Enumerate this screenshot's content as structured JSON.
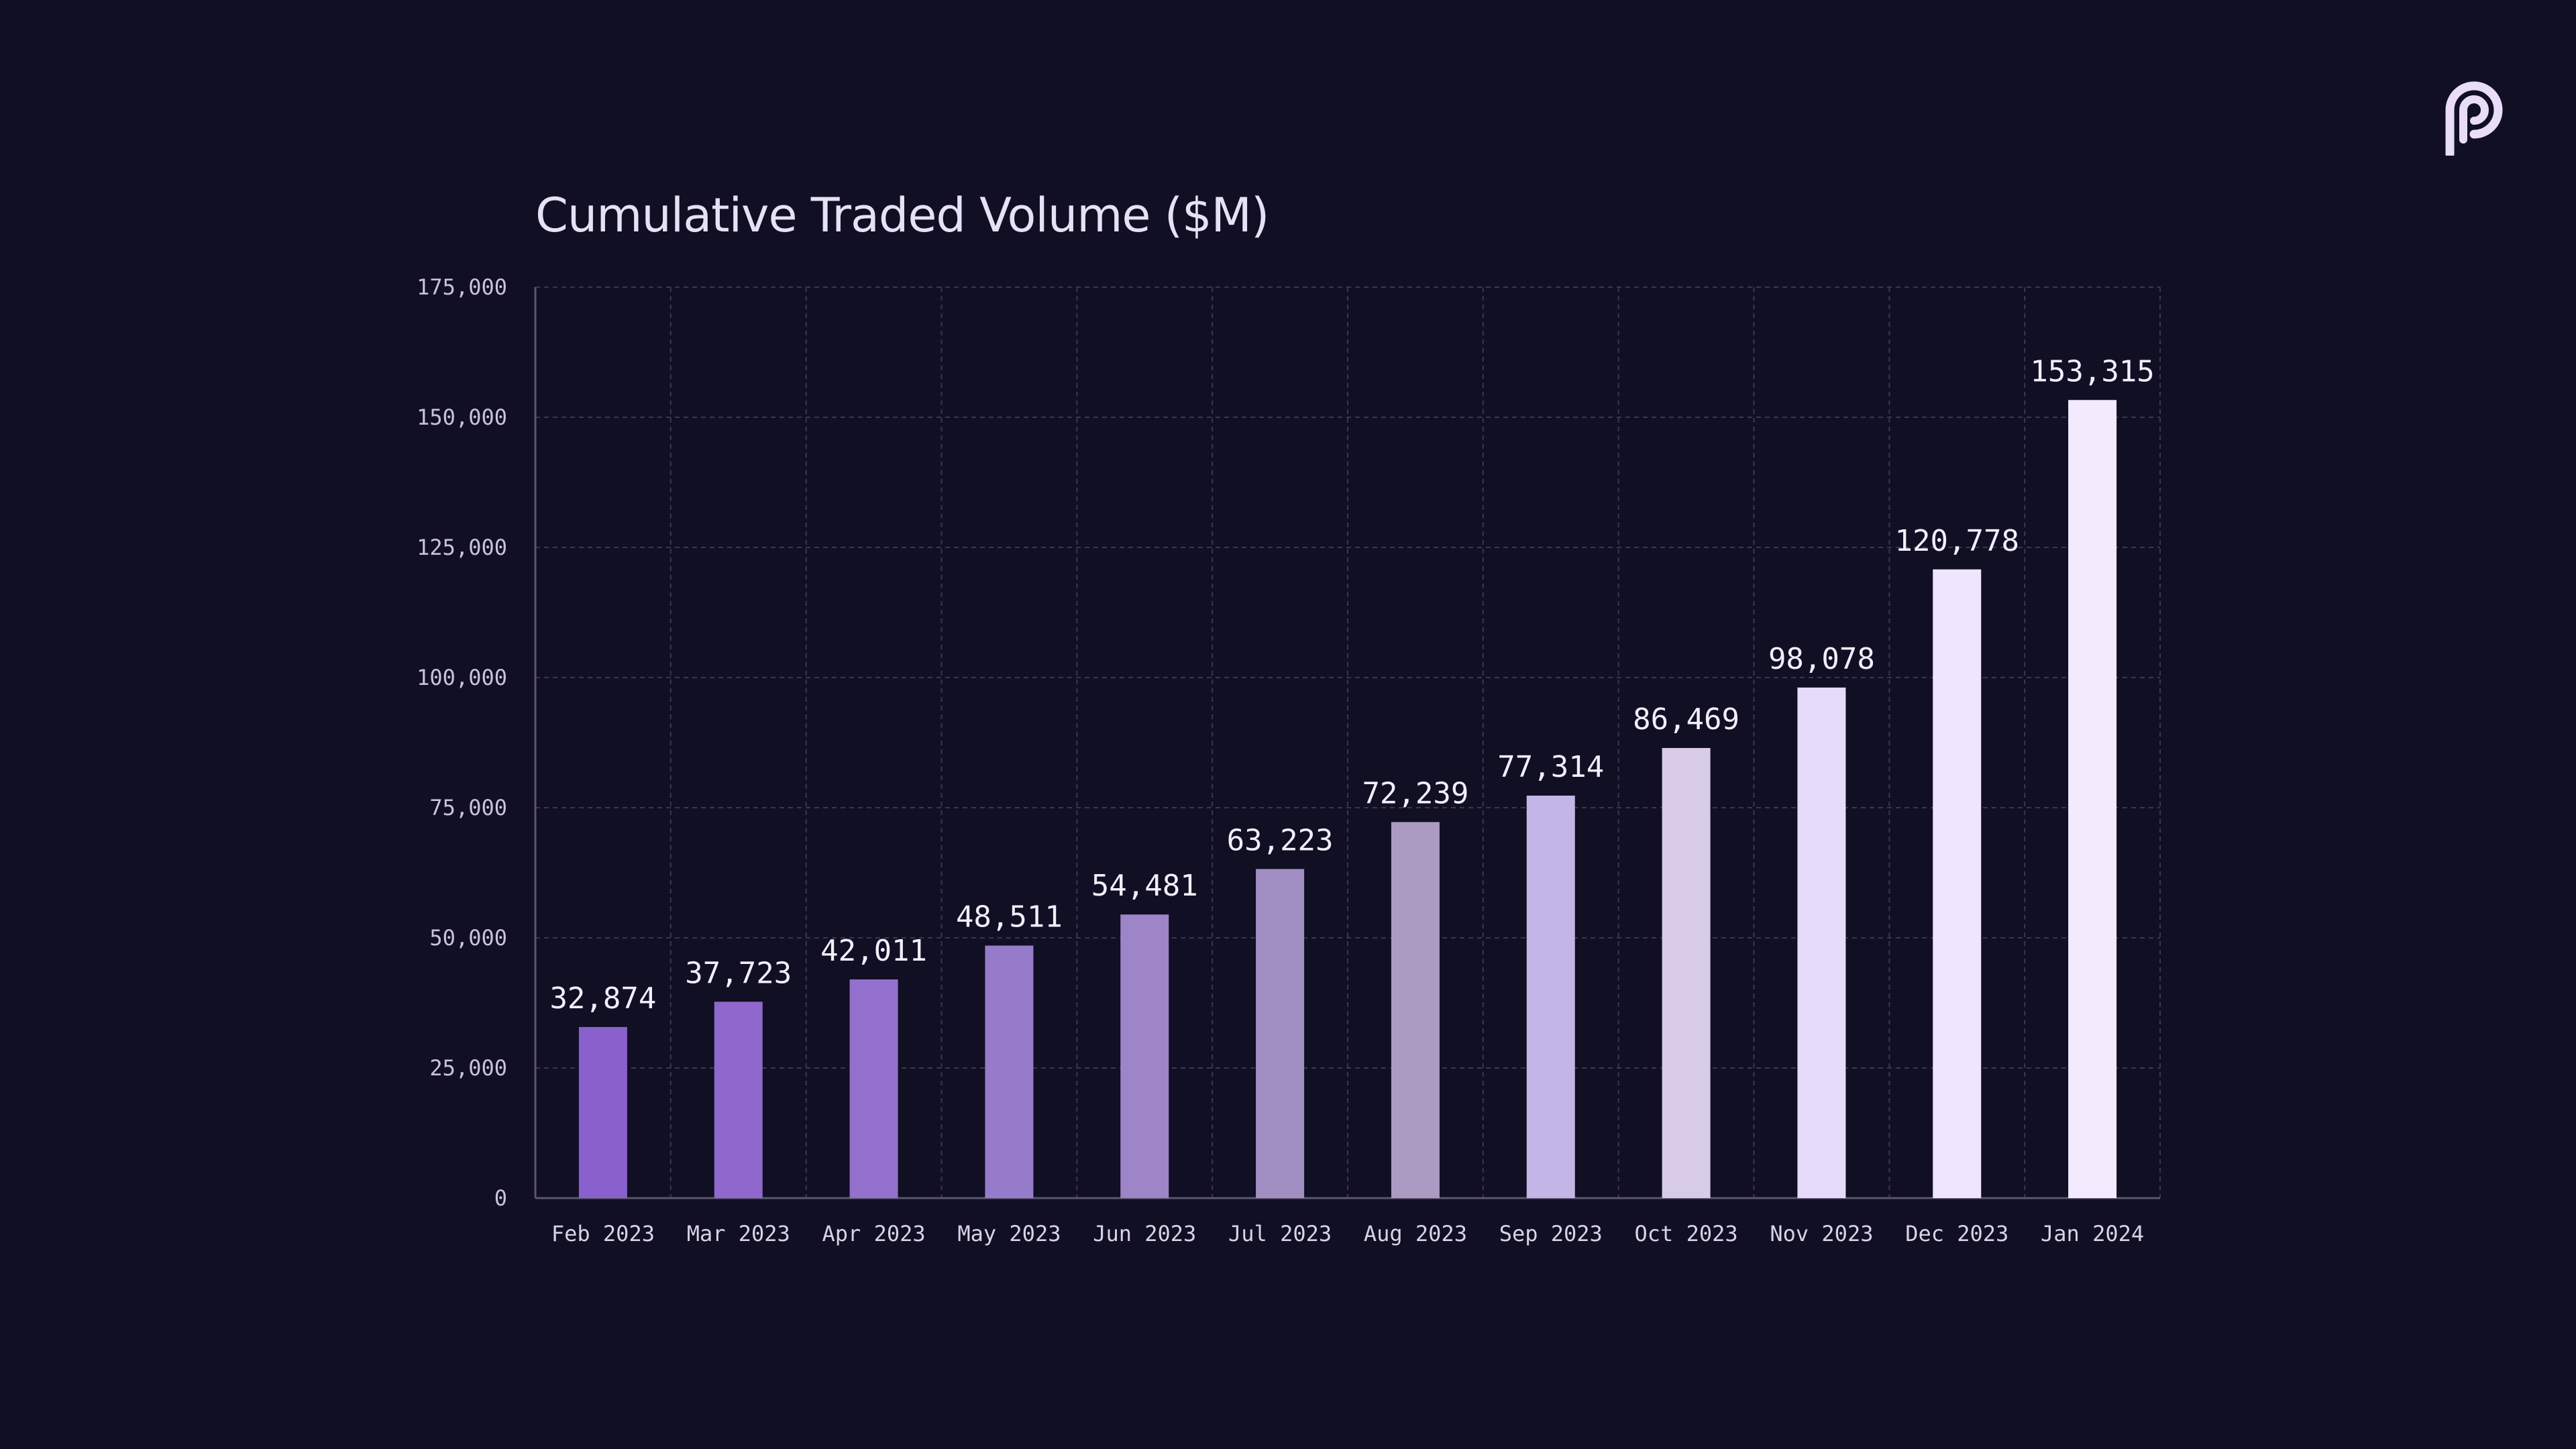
{
  "chart_data": {
    "type": "bar",
    "title": "Cumulative Traded Volume ($M)",
    "xlabel": "",
    "ylabel": "",
    "categories": [
      "Feb 2023",
      "Mar 2023",
      "Apr 2023",
      "May 2023",
      "Jun 2023",
      "Jul 2023",
      "Aug 2023",
      "Sep 2023",
      "Oct 2023",
      "Nov 2023",
      "Dec 2023",
      "Jan 2024"
    ],
    "values": [
      32874,
      37723,
      42011,
      48511,
      54481,
      63223,
      72239,
      77314,
      86469,
      98078,
      120778,
      153315
    ],
    "value_labels": [
      "32,874",
      "37,723",
      "42,011",
      "48,511",
      "54,481",
      "63,223",
      "72,239",
      "77,314",
      "86,469",
      "98,078",
      "120,778",
      "153,315"
    ],
    "ylim": [
      0,
      175000
    ],
    "yticks": [
      0,
      25000,
      50000,
      75000,
      100000,
      125000,
      150000,
      175000
    ],
    "ytick_labels": [
      "0",
      "25,000",
      "50,000",
      "75,000",
      "100,000",
      "125,000",
      "150,000",
      "175,000"
    ],
    "grid": true,
    "legend": "none",
    "bar_colors": [
      "#8a60cc",
      "#8f67cd",
      "#9370cc",
      "#977bcb",
      "#9d85c8",
      "#a18fc3",
      "#ab9bc2",
      "#c3b5e6",
      "#d7cbe8",
      "#e6dcfa",
      "#efe6fd",
      "#f3eafe"
    ]
  },
  "theme": {
    "background": "#110f23",
    "grid_color": "#3a3750",
    "axis_color": "#5a566e",
    "title_color": "#e6e1f5",
    "logo_color": "#e8dcf8"
  },
  "branding": {
    "logo_icon": "pyth-logo-icon"
  }
}
